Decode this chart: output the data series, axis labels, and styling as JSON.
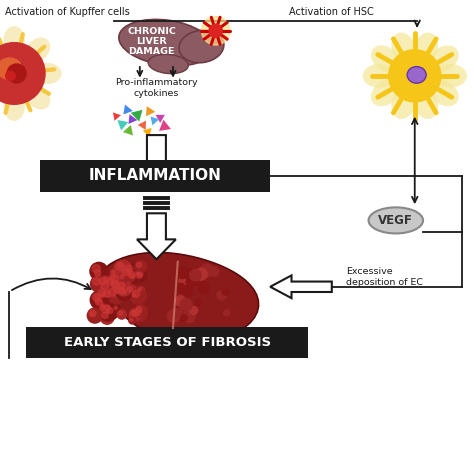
{
  "bg_color": "#ffffff",
  "kupffer_text": "Activation of Kupffer cells",
  "hsc_text": "Activation of HSC",
  "pro_inflam_text": "Pro-inflammatory\ncytokines",
  "vegf_text": "VEGF",
  "excessive_text": "Excessive\ndeposition of EC",
  "inflammation_text": "INFLAMMATION",
  "fibrosis_text": "EARLY STAGES OF FIBROSIS",
  "chronic_text": "CHRONIC\nLIVER\nDAMAGE",
  "liver_body_color": "#8b5a62",
  "liver_dark_color": "#6b3a42",
  "fibrotic_liver_color": "#7a1a1a",
  "fibrotic_dot_color": "#9b2020",
  "hsc_body_color": "#f5c518",
  "hsc_nucleus_color": "#9966cc",
  "kupffer_spike_color": "#f5c842",
  "kupffer_body_color": "#cc3333",
  "vegf_fill": "#c8c8c8",
  "vegf_edge": "#888888",
  "box_color": "#1a1a1a",
  "arrow_color": "#1a1a1a",
  "line_color": "#1a1a1a",
  "star_color": "#dd2222",
  "star_ray_color": "#cc0000"
}
